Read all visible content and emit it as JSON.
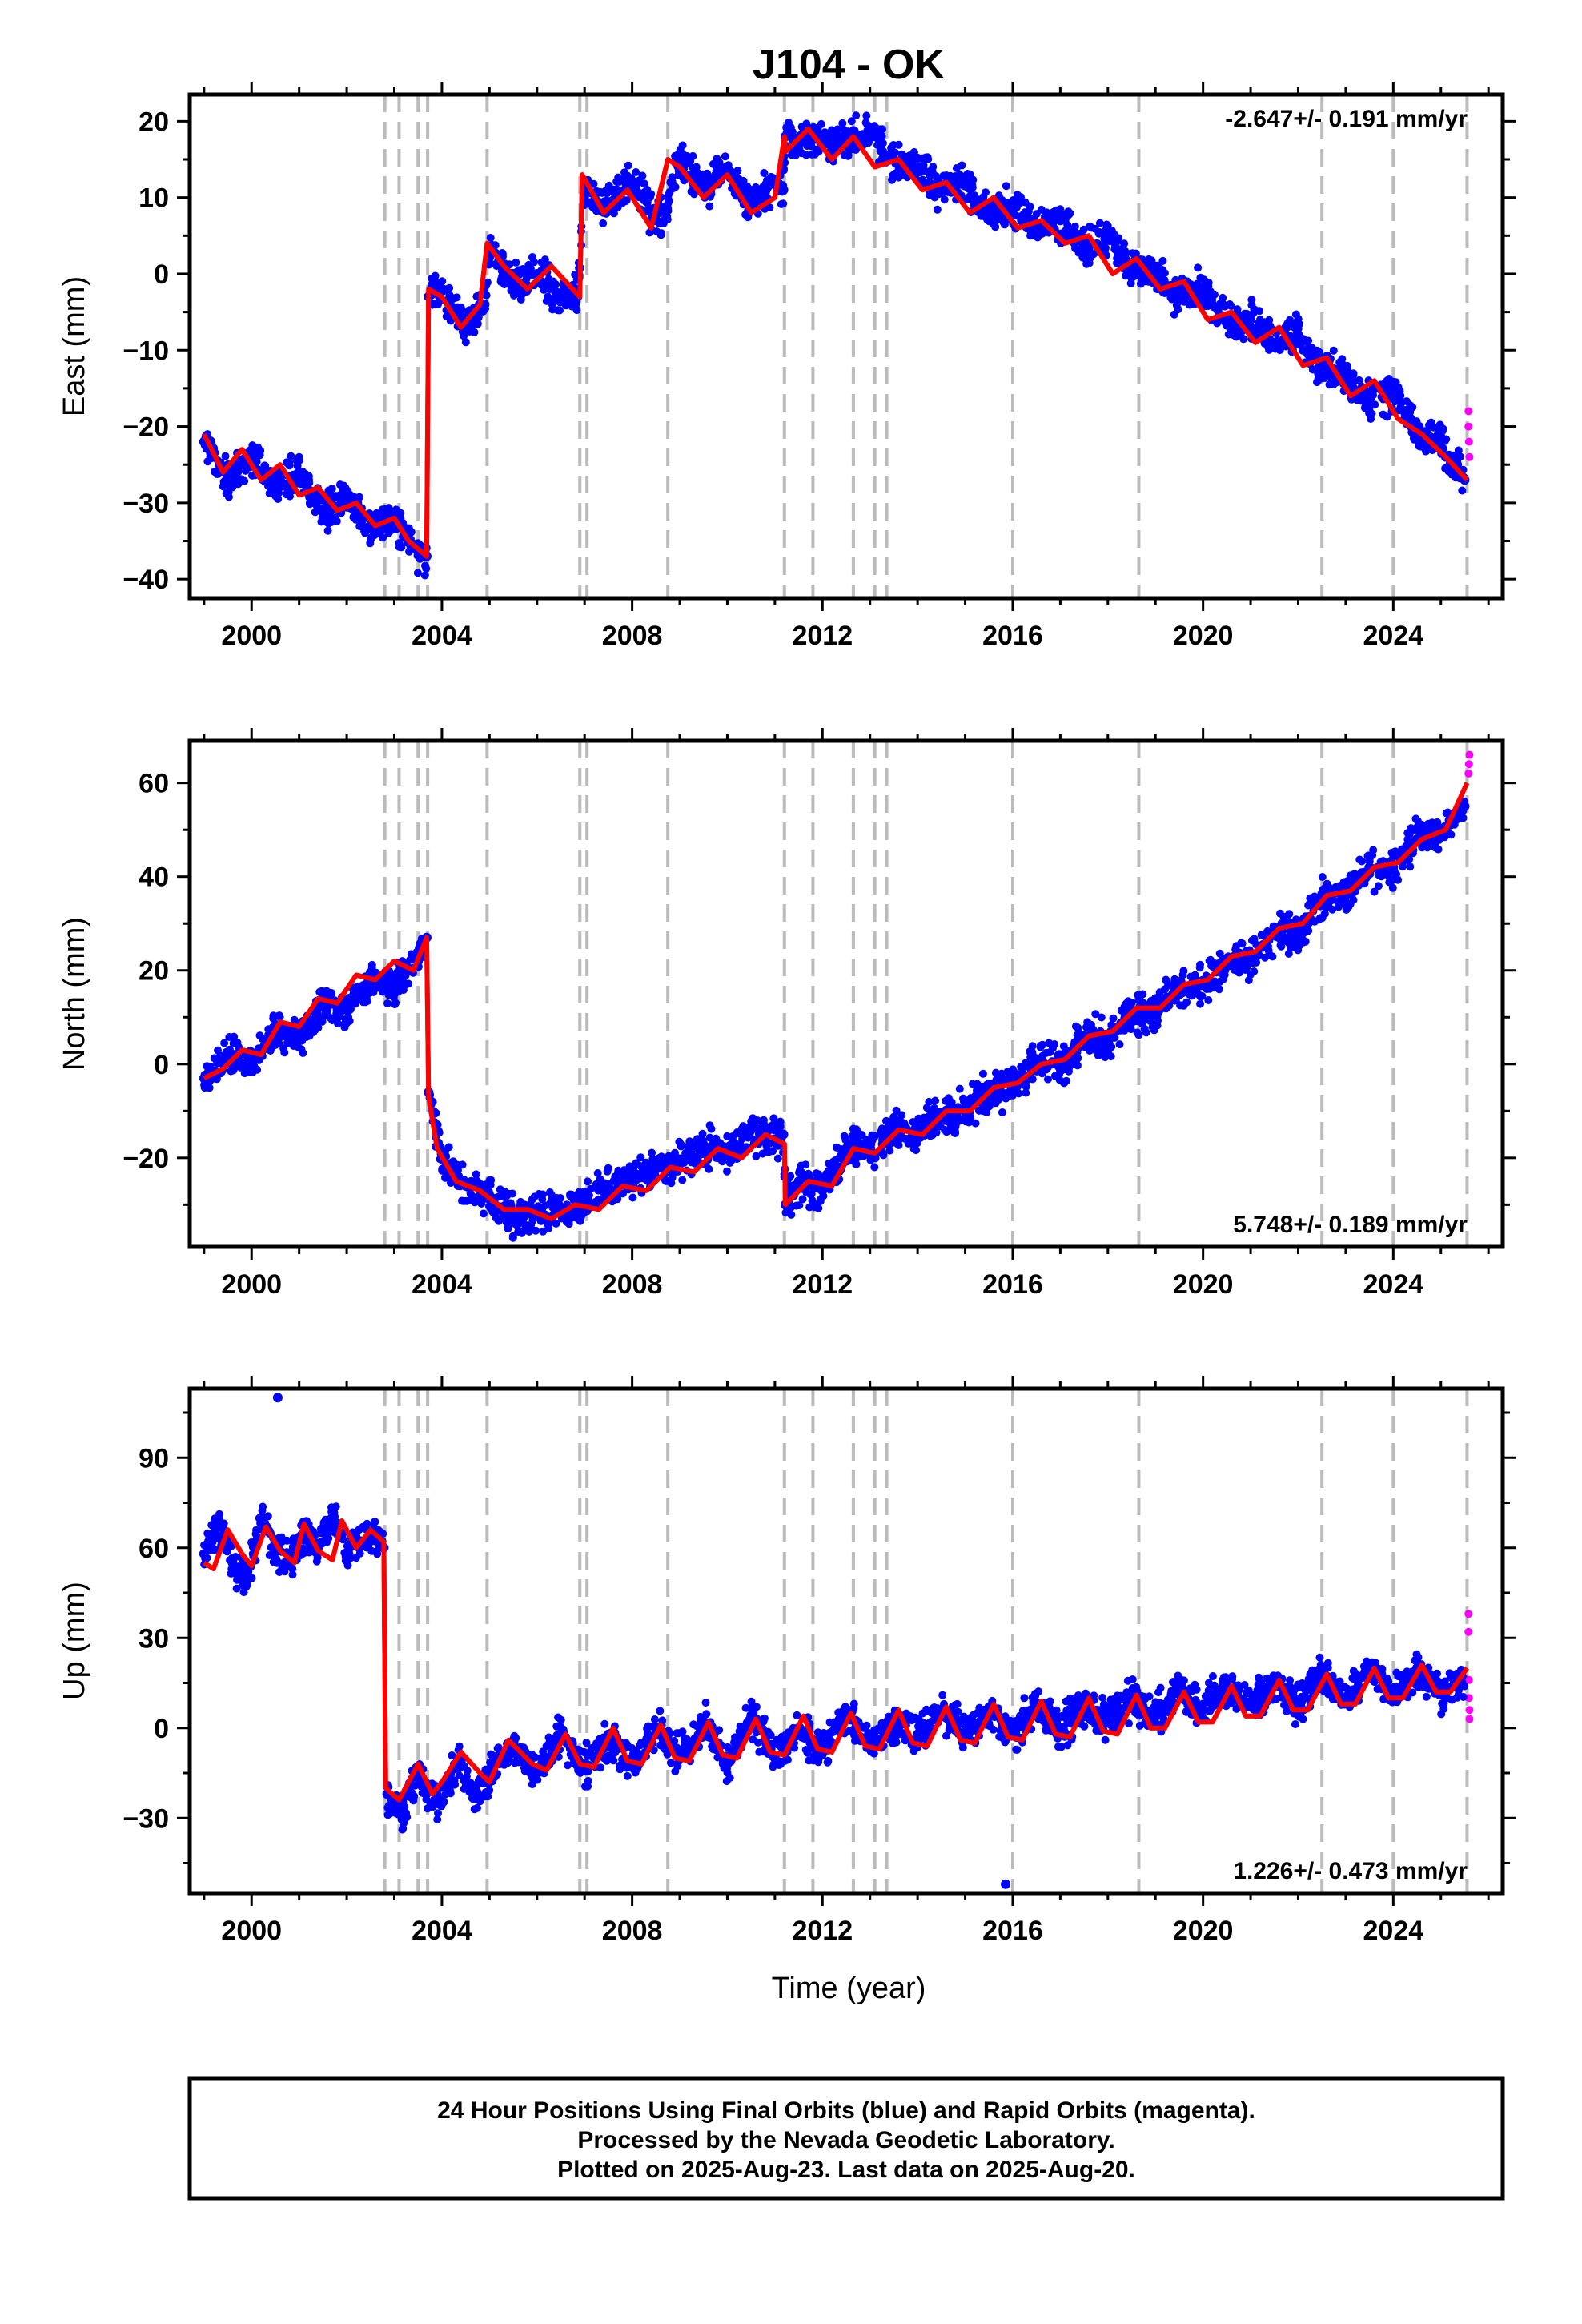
{
  "figure": {
    "title": "J104 - OK",
    "xlabel": "Time (year)",
    "footer_lines": [
      "24 Hour Positions Using Final Orbits (blue) and Rapid Orbits (magenta).",
      "Processed by the Nevada Geodetic Laboratory.",
      "Plotted on 2025-Aug-23. Last data on 2025-Aug-20."
    ]
  },
  "colors": {
    "final_orbits": "#0000ff",
    "rapid_orbits": "#ff00ff",
    "model_fit": "#ff0000",
    "event_lines": "#bbbbbb"
  },
  "chart_data": [
    {
      "type": "scatter",
      "ylabel": "East (mm)",
      "rate_label": "-2.647+/- 0.191 mm/yr",
      "rate_position": "top-right",
      "xlim": [
        1998.7,
        2026.3
      ],
      "ylim": [
        -42.5,
        23.5
      ],
      "x_ticks": [
        2000,
        2004,
        2008,
        2012,
        2016,
        2020,
        2024
      ],
      "y_ticks": [
        -40,
        -30,
        -20,
        -10,
        0,
        10,
        20
      ],
      "event_lines_x": [
        2002.8,
        2003.1,
        2003.5,
        2003.7,
        2004.95,
        2006.9,
        2007.05,
        2008.75,
        2011.2,
        2011.8,
        2012.65,
        2013.1,
        2013.35,
        2016.0,
        2018.65,
        2022.5,
        2024.0,
        2025.55
      ],
      "series": [
        {
          "name": "Final Orbits",
          "color": "#0000ff",
          "x": [
            1999.0,
            1999.5,
            2000.0,
            2000.5,
            2001.0,
            2001.5,
            2002.0,
            2002.5,
            2003.0,
            2003.4,
            2003.68,
            2003.72,
            2004.0,
            2004.5,
            2004.9,
            2005.0,
            2005.5,
            2006.0,
            2006.5,
            2006.85,
            2007.0,
            2007.5,
            2008.0,
            2008.5,
            2008.7,
            2009.0,
            2009.5,
            2010.0,
            2010.5,
            2011.0,
            2011.18,
            2011.22,
            2011.5,
            2012.0,
            2012.5,
            2013.0,
            2013.5,
            2014.0,
            2014.5,
            2015.0,
            2015.5,
            2016.0,
            2016.5,
            2017.0,
            2017.5,
            2018.0,
            2018.5,
            2019.0,
            2019.5,
            2020.0,
            2020.5,
            2021.0,
            2021.5,
            2022.0,
            2022.5,
            2023.0,
            2023.5,
            2024.0,
            2024.5,
            2025.0,
            2025.5
          ],
          "y": [
            -22,
            -27,
            -24,
            -28,
            -26,
            -31,
            -29,
            -33,
            -32,
            -36,
            -37,
            -3,
            -2,
            -7,
            -4,
            3,
            -1,
            0,
            -3,
            -3,
            11,
            9,
            12,
            7,
            8,
            15,
            11,
            14,
            9,
            12,
            11,
            18,
            17,
            18,
            17,
            19,
            15,
            14,
            11,
            12,
            8,
            9,
            6,
            7,
            3,
            5,
            1,
            0,
            -3,
            -2,
            -6,
            -6,
            -9,
            -8,
            -13,
            -13,
            -17,
            -15,
            -21,
            -22,
            -27
          ]
        },
        {
          "name": "Rapid Orbits",
          "color": "#ff00ff",
          "x": [
            2025.58,
            2025.58,
            2025.59,
            2025.6
          ],
          "y": [
            -18,
            -20,
            -22,
            -24
          ]
        },
        {
          "name": "Model Fit",
          "color": "#ff0000",
          "x": [
            1999.0,
            1999.4,
            1999.8,
            2000.2,
            2000.6,
            2001.0,
            2001.4,
            2001.8,
            2002.2,
            2002.6,
            2003.0,
            2003.3,
            2003.68,
            2003.72,
            2004.0,
            2004.4,
            2004.8,
            2004.95,
            2005.3,
            2005.8,
            2006.3,
            2006.9,
            2006.95,
            2007.4,
            2007.9,
            2008.4,
            2008.75,
            2009.0,
            2009.5,
            2010.0,
            2010.5,
            2011.0,
            2011.2,
            2011.22,
            2011.7,
            2012.2,
            2012.65,
            2013.1,
            2013.6,
            2014.1,
            2014.6,
            2015.1,
            2015.6,
            2016.1,
            2016.6,
            2017.1,
            2017.6,
            2018.1,
            2018.6,
            2019.1,
            2019.6,
            2020.1,
            2020.6,
            2021.1,
            2021.6,
            2022.1,
            2022.6,
            2023.1,
            2023.6,
            2024.1,
            2024.6,
            2025.1,
            2025.55
          ],
          "y": [
            -21,
            -26,
            -23,
            -27,
            -25,
            -29,
            -28,
            -31,
            -30,
            -33,
            -32,
            -35,
            -37,
            -2,
            -3,
            -7,
            -4,
            4,
            1,
            -2,
            1,
            -3,
            13,
            8,
            11,
            6,
            15,
            14,
            10,
            13,
            8,
            10,
            18,
            16,
            19,
            15,
            18,
            14,
            15,
            11,
            12,
            8,
            10,
            6,
            7,
            4,
            5,
            0,
            2,
            -2,
            -1,
            -6,
            -5,
            -9,
            -7,
            -12,
            -11,
            -16,
            -14,
            -19,
            -21,
            -24,
            -27
          ]
        }
      ]
    },
    {
      "type": "scatter",
      "ylabel": "North (mm)",
      "rate_label": "5.748+/- 0.189 mm/yr",
      "rate_position": "bottom-right",
      "xlim": [
        1998.7,
        2026.3
      ],
      "ylim": [
        -39,
        69
      ],
      "x_ticks": [
        2000,
        2004,
        2008,
        2012,
        2016,
        2020,
        2024
      ],
      "y_ticks": [
        -20,
        0,
        20,
        40,
        60
      ],
      "event_lines_x": [
        2002.8,
        2003.1,
        2003.5,
        2003.7,
        2004.95,
        2006.9,
        2007.05,
        2008.75,
        2011.2,
        2011.8,
        2012.65,
        2013.1,
        2013.35,
        2016.0,
        2018.65,
        2022.5,
        2024.0,
        2025.55
      ],
      "series": [
        {
          "name": "Final Orbits",
          "color": "#0000ff",
          "x": [
            1999.0,
            1999.5,
            2000.0,
            2000.5,
            2001.0,
            2001.5,
            2002.0,
            2002.5,
            2003.0,
            2003.5,
            2003.68,
            2003.72,
            2004.0,
            2004.5,
            2005.0,
            2005.5,
            2006.0,
            2006.5,
            2007.0,
            2007.5,
            2008.0,
            2008.5,
            2009.0,
            2009.5,
            2010.0,
            2010.5,
            2011.0,
            2011.18,
            2011.22,
            2011.5,
            2012.0,
            2012.5,
            2013.0,
            2013.5,
            2014.0,
            2014.5,
            2015.0,
            2015.5,
            2016.0,
            2016.5,
            2017.0,
            2017.5,
            2018.0,
            2018.5,
            2019.0,
            2019.5,
            2020.0,
            2020.5,
            2021.0,
            2021.5,
            2022.0,
            2022.5,
            2023.0,
            2023.5,
            2024.0,
            2024.5,
            2025.0,
            2025.5
          ],
          "y": [
            -3,
            2,
            0,
            7,
            5,
            13,
            12,
            18,
            17,
            22,
            27,
            -6,
            -20,
            -26,
            -28,
            -33,
            -32,
            -31,
            -30,
            -26,
            -25,
            -22,
            -21,
            -18,
            -19,
            -14,
            -16,
            -15,
            -30,
            -25,
            -27,
            -18,
            -19,
            -14,
            -15,
            -11,
            -10,
            -6,
            -5,
            0,
            0,
            6,
            5,
            11,
            11,
            16,
            17,
            22,
            22,
            28,
            28,
            35,
            36,
            42,
            42,
            48,
            49,
            55
          ]
        },
        {
          "name": "Rapid Orbits",
          "color": "#ff00ff",
          "x": [
            2025.58,
            2025.59,
            2025.6
          ],
          "y": [
            62,
            64,
            66
          ]
        },
        {
          "name": "Model Fit",
          "color": "#ff0000",
          "x": [
            1999.0,
            1999.4,
            1999.8,
            2000.2,
            2000.6,
            2001.0,
            2001.4,
            2001.8,
            2002.2,
            2002.6,
            2003.0,
            2003.4,
            2003.68,
            2003.72,
            2003.9,
            2004.3,
            2004.8,
            2005.3,
            2005.8,
            2006.3,
            2006.8,
            2007.3,
            2007.8,
            2008.3,
            2008.8,
            2009.3,
            2009.8,
            2010.3,
            2010.8,
            2011.2,
            2011.22,
            2011.7,
            2012.2,
            2012.65,
            2013.1,
            2013.6,
            2014.1,
            2014.6,
            2015.1,
            2015.6,
            2016.1,
            2016.6,
            2017.1,
            2017.6,
            2018.1,
            2018.6,
            2019.1,
            2019.6,
            2020.1,
            2020.6,
            2021.1,
            2021.6,
            2022.1,
            2022.6,
            2023.1,
            2023.6,
            2024.1,
            2024.6,
            2025.1,
            2025.55
          ],
          "y": [
            -3,
            -1,
            3,
            2,
            9,
            8,
            14,
            13,
            19,
            18,
            22,
            20,
            27,
            -7,
            -18,
            -25,
            -27,
            -31,
            -31,
            -33,
            -30,
            -31,
            -26,
            -27,
            -22,
            -23,
            -18,
            -20,
            -15,
            -17,
            -30,
            -25,
            -26,
            -18,
            -19,
            -14,
            -15,
            -10,
            -10,
            -5,
            -4,
            0,
            1,
            6,
            7,
            12,
            12,
            17,
            18,
            23,
            24,
            29,
            30,
            36,
            37,
            42,
            43,
            48,
            50,
            60
          ]
        }
      ]
    },
    {
      "type": "scatter",
      "ylabel": "Up (mm)",
      "rate_label": "1.226+/- 0.473 mm/yr",
      "rate_position": "bottom-right",
      "xlim": [
        1998.7,
        2026.3
      ],
      "ylim": [
        -55,
        113
      ],
      "x_ticks": [
        2000,
        2004,
        2008,
        2012,
        2016,
        2020,
        2024
      ],
      "y_ticks": [
        -30,
        0,
        30,
        60,
        90
      ],
      "event_lines_x": [
        2002.8,
        2003.1,
        2003.5,
        2003.7,
        2004.95,
        2006.9,
        2007.05,
        2008.75,
        2011.2,
        2011.8,
        2012.65,
        2013.1,
        2013.35,
        2016.0,
        2018.65,
        2022.5,
        2024.0,
        2025.55
      ],
      "series": [
        {
          "name": "Final Orbits",
          "color": "#0000ff",
          "x": [
            1999.0,
            1999.3,
            1999.6,
            1999.9,
            2000.2,
            2000.5,
            2000.8,
            2001.1,
            2001.4,
            2001.7,
            2002.0,
            2002.3,
            2002.6,
            2002.78,
            2002.85,
            2003.2,
            2003.5,
            2003.8,
            2004.1,
            2004.4,
            2004.7,
            2005.0,
            2005.5,
            2006.0,
            2006.5,
            2007.0,
            2007.5,
            2008.0,
            2008.5,
            2009.0,
            2009.5,
            2010.0,
            2010.5,
            2011.0,
            2011.5,
            2012.0,
            2012.5,
            2013.0,
            2013.5,
            2014.0,
            2014.5,
            2015.0,
            2015.5,
            2016.0,
            2016.5,
            2017.0,
            2017.5,
            2018.0,
            2018.5,
            2019.0,
            2019.5,
            2020.0,
            2020.5,
            2021.0,
            2021.5,
            2022.0,
            2022.5,
            2023.0,
            2023.5,
            2024.0,
            2024.5,
            2025.0,
            2025.5,
            2000.55,
            2015.85
          ],
          "y": [
            58,
            68,
            55,
            50,
            70,
            60,
            55,
            65,
            60,
            72,
            58,
            62,
            66,
            60,
            -22,
            -28,
            -15,
            -25,
            -20,
            -12,
            -22,
            -16,
            -6,
            -15,
            -2,
            -14,
            -4,
            -12,
            0,
            -10,
            2,
            -12,
            4,
            -10,
            0,
            -8,
            4,
            -6,
            2,
            -4,
            6,
            -2,
            4,
            -2,
            8,
            0,
            8,
            2,
            10,
            4,
            12,
            6,
            14,
            8,
            14,
            8,
            18,
            10,
            20,
            10,
            20,
            12,
            16,
            110,
            -52
          ]
        },
        {
          "name": "Rapid Orbits",
          "color": "#ff00ff",
          "x": [
            2025.58,
            2025.58,
            2025.59,
            2025.59,
            2025.6,
            2025.6
          ],
          "y": [
            38,
            32,
            16,
            10,
            6,
            3
          ]
        },
        {
          "name": "Model Fit",
          "color": "#ff0000",
          "x": [
            1999.0,
            1999.2,
            1999.5,
            1999.8,
            2000.0,
            2000.3,
            2000.6,
            2000.9,
            2001.1,
            2001.4,
            2001.7,
            2001.9,
            2002.2,
            2002.5,
            2002.78,
            2002.82,
            2003.1,
            2003.5,
            2003.8,
            2004.0,
            2004.4,
            2004.8,
            2005.0,
            2005.4,
            2005.9,
            2006.2,
            2006.6,
            2006.9,
            2007.2,
            2007.6,
            2007.9,
            2008.2,
            2008.6,
            2008.9,
            2009.2,
            2009.6,
            2009.9,
            2010.2,
            2010.6,
            2010.9,
            2011.2,
            2011.6,
            2011.9,
            2012.2,
            2012.6,
            2012.9,
            2013.2,
            2013.6,
            2013.9,
            2014.2,
            2014.6,
            2014.9,
            2015.2,
            2015.6,
            2015.9,
            2016.2,
            2016.6,
            2016.9,
            2017.2,
            2017.6,
            2017.9,
            2018.2,
            2018.6,
            2018.9,
            2019.2,
            2019.6,
            2019.9,
            2020.2,
            2020.6,
            2020.9,
            2021.2,
            2021.6,
            2021.9,
            2022.2,
            2022.6,
            2022.9,
            2023.2,
            2023.6,
            2023.9,
            2024.2,
            2024.6,
            2024.9,
            2025.2,
            2025.55
          ],
          "y": [
            55,
            53,
            66,
            58,
            54,
            67,
            59,
            55,
            68,
            59,
            56,
            69,
            60,
            66,
            62,
            -20,
            -24,
            -12,
            -22,
            -18,
            -8,
            -15,
            -18,
            -4,
            -12,
            -14,
            -2,
            -12,
            -13,
            0,
            -11,
            -12,
            1,
            -10,
            -11,
            2,
            -9,
            -10,
            3,
            -8,
            -9,
            4,
            -7,
            -8,
            5,
            -6,
            -7,
            6,
            -5,
            -6,
            7,
            -4,
            -5,
            8,
            -3,
            -4,
            9,
            -2,
            -3,
            10,
            -1,
            -2,
            11,
            0,
            0,
            12,
            2,
            2,
            14,
            4,
            4,
            16,
            6,
            6,
            18,
            8,
            8,
            20,
            10,
            10,
            21,
            12,
            12,
            20
          ]
        }
      ]
    }
  ]
}
